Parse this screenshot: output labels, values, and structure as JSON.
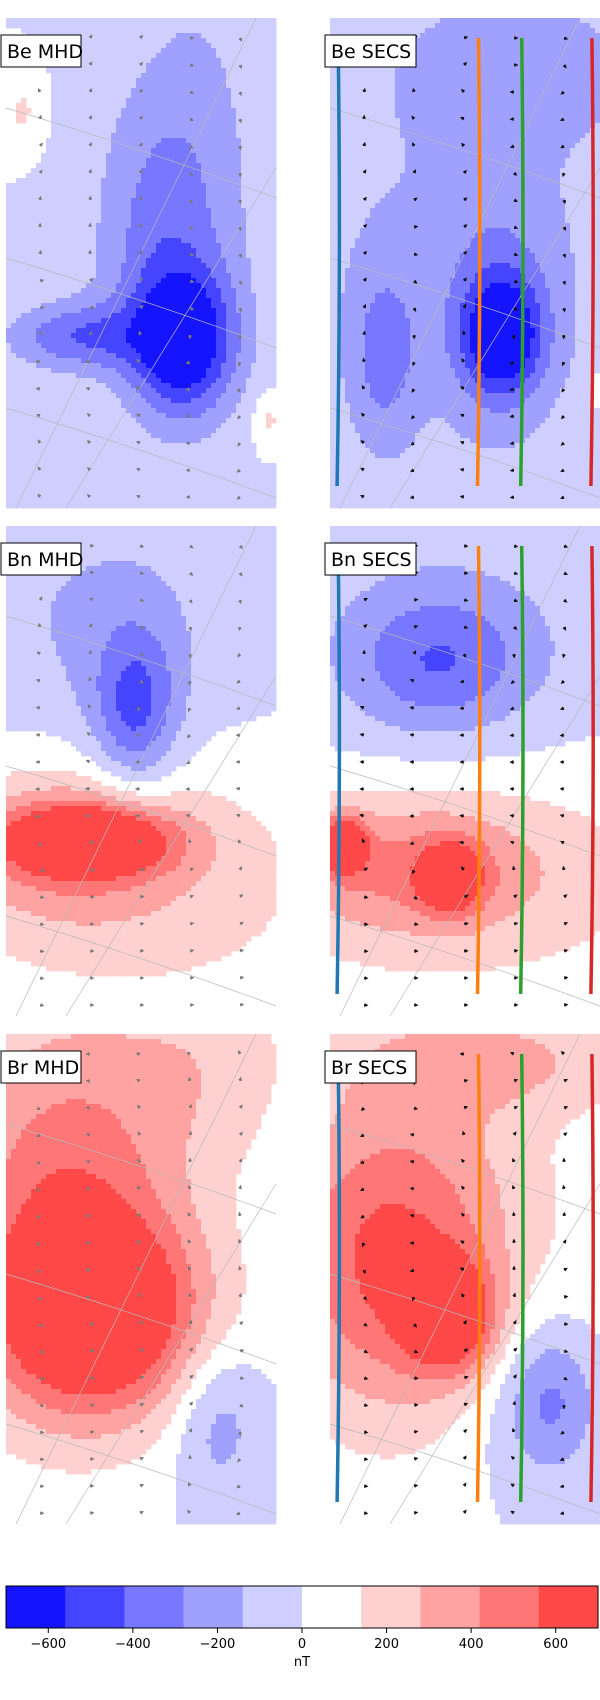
{
  "chart_data": {
    "type": "heatmap",
    "colorbar": {
      "label": "nT",
      "range": [
        -700,
        700
      ],
      "bins": [
        -700,
        -560,
        -420,
        -280,
        -140,
        0,
        140,
        280,
        420,
        560,
        700
      ],
      "colors": [
        "#1414ff",
        "#4545ff",
        "#7777ff",
        "#a0a0ff",
        "#cfcfff",
        "#ffffff",
        "#ffd0d0",
        "#ffa2a2",
        "#ff7676",
        "#ff4848",
        "#ff1717"
      ],
      "ticks": [
        -600,
        -400,
        -200,
        0,
        200,
        400,
        600
      ],
      "tick_labels": [
        "−600",
        "−400",
        "−200",
        "0",
        "200",
        "400",
        "600"
      ]
    },
    "panels": [
      {
        "label": "Be MHD",
        "component": "Be",
        "source": "MHD",
        "blobs": [
          {
            "cx": 0.66,
            "cy": 0.66,
            "sx": 0.13,
            "sy": 0.1,
            "a": -640
          },
          {
            "cx": 0.26,
            "cy": 0.65,
            "sx": 0.18,
            "sy": 0.05,
            "a": -380
          },
          {
            "cx": 0.55,
            "cy": 0.45,
            "sx": 0.17,
            "sy": 0.22,
            "a": -260
          },
          {
            "cx": 0.72,
            "cy": 0.3,
            "sx": 0.18,
            "sy": 0.35,
            "a": -150
          },
          {
            "cx": 0.06,
            "cy": 0.19,
            "sx": 0.05,
            "sy": 0.05,
            "a": 160
          },
          {
            "cx": 0.97,
            "cy": 0.82,
            "sx": 0.04,
            "sy": 0.04,
            "a": 190
          }
        ]
      },
      {
        "label": "Be SECS",
        "component": "Be",
        "source": "SECS",
        "blobs": [
          {
            "cx": 0.64,
            "cy": 0.65,
            "sx": 0.1,
            "sy": 0.08,
            "a": -560
          },
          {
            "cx": 0.62,
            "cy": 0.6,
            "sx": 0.14,
            "sy": 0.16,
            "a": -220
          },
          {
            "cx": 0.2,
            "cy": 0.69,
            "sx": 0.09,
            "sy": 0.13,
            "a": -260
          },
          {
            "cx": 0.5,
            "cy": 0.45,
            "sx": 0.55,
            "sy": 0.4,
            "a": -150
          },
          {
            "cx": 0.72,
            "cy": 0.1,
            "sx": 0.3,
            "sy": 0.1,
            "a": -160
          },
          {
            "cx": 0.99,
            "cy": 0.76,
            "sx": 0.03,
            "sy": 0.03,
            "a": 180
          }
        ]
      },
      {
        "label": "Bn MHD",
        "component": "Bn",
        "source": "MHD",
        "blobs": [
          {
            "cx": 0.3,
            "cy": 0.64,
            "sx": 0.22,
            "sy": 0.05,
            "a": 700
          },
          {
            "cx": 0.22,
            "cy": 0.66,
            "sx": 0.35,
            "sy": 0.12,
            "a": 300
          },
          {
            "cx": 0.55,
            "cy": 0.75,
            "sx": 0.6,
            "sy": 0.2,
            "a": 170
          },
          {
            "cx": 0.48,
            "cy": 0.38,
            "sx": 0.11,
            "sy": 0.12,
            "a": -420
          },
          {
            "cx": 0.35,
            "cy": 0.2,
            "sx": 0.38,
            "sy": 0.2,
            "a": -160
          }
        ]
      },
      {
        "label": "Bn SECS",
        "component": "Bn",
        "source": "SECS",
        "blobs": [
          {
            "cx": 0.05,
            "cy": 0.65,
            "sx": 0.06,
            "sy": 0.04,
            "a": 620
          },
          {
            "cx": 0.45,
            "cy": 0.72,
            "sx": 0.08,
            "sy": 0.05,
            "a": 480
          },
          {
            "cx": 0.3,
            "cy": 0.7,
            "sx": 0.35,
            "sy": 0.1,
            "a": 330
          },
          {
            "cx": 0.55,
            "cy": 0.72,
            "sx": 0.7,
            "sy": 0.2,
            "a": 170
          },
          {
            "cx": 0.4,
            "cy": 0.28,
            "sx": 0.22,
            "sy": 0.1,
            "a": -300
          },
          {
            "cx": 0.45,
            "cy": 0.25,
            "sx": 0.45,
            "sy": 0.18,
            "a": -150
          }
        ]
      },
      {
        "label": "Br MHD",
        "component": "Br",
        "source": "MHD",
        "blobs": [
          {
            "cx": 0.35,
            "cy": 0.58,
            "sx": 0.28,
            "sy": 0.14,
            "a": 700
          },
          {
            "cx": 0.2,
            "cy": 0.42,
            "sx": 0.32,
            "sy": 0.28,
            "a": 350
          },
          {
            "cx": 0.25,
            "cy": 0.2,
            "sx": 0.35,
            "sy": 0.25,
            "a": 200
          },
          {
            "cx": 0.78,
            "cy": 0.78,
            "sx": 0.12,
            "sy": 0.12,
            "a": -250
          },
          {
            "cx": 0.78,
            "cy": 0.05,
            "sx": 0.25,
            "sy": 0.15,
            "a": 170
          }
        ]
      },
      {
        "label": "Br SECS",
        "component": "Br",
        "source": "SECS",
        "blobs": [
          {
            "cx": 0.45,
            "cy": 0.58,
            "sx": 0.12,
            "sy": 0.08,
            "a": 600
          },
          {
            "cx": 0.2,
            "cy": 0.45,
            "sx": 0.3,
            "sy": 0.22,
            "a": 430
          },
          {
            "cx": 0.4,
            "cy": 0.45,
            "sx": 0.45,
            "sy": 0.3,
            "a": 200
          },
          {
            "cx": 0.6,
            "cy": 0.05,
            "sx": 0.4,
            "sy": 0.08,
            "a": 260
          },
          {
            "cx": 0.82,
            "cy": 0.75,
            "sx": 0.12,
            "sy": 0.1,
            "a": -280
          },
          {
            "cx": 0.7,
            "cy": 0.7,
            "sx": 0.2,
            "sy": 0.18,
            "a": -150
          }
        ]
      }
    ]
  }
}
